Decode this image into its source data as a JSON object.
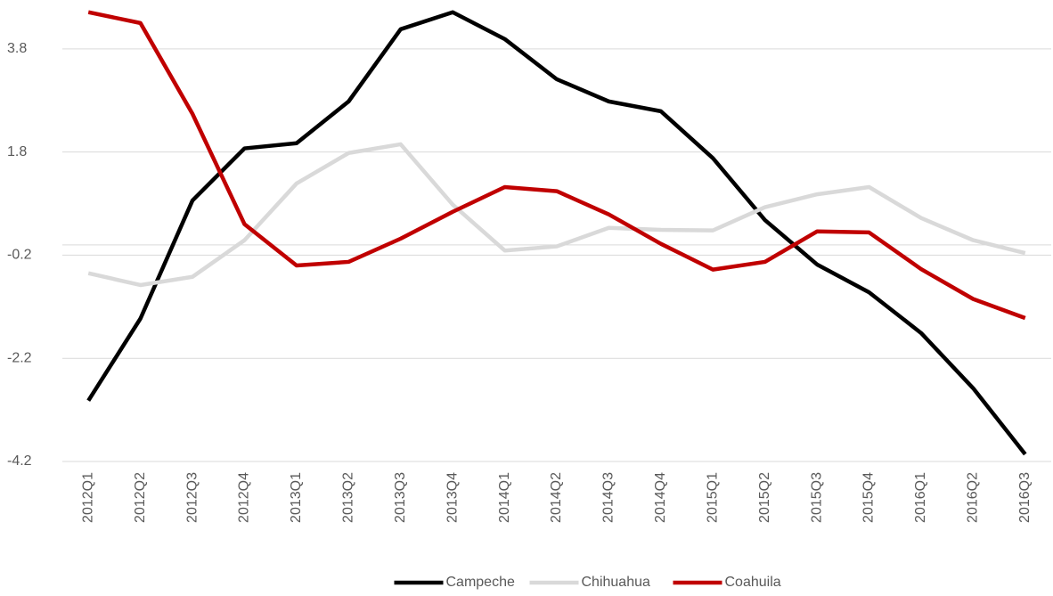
{
  "chart_data": {
    "type": "line",
    "categories": [
      "2012Q1",
      "2012Q2",
      "2012Q3",
      "2012Q4",
      "2013Q1",
      "2013Q2",
      "2013Q3",
      "2013Q4",
      "2014Q1",
      "2014Q2",
      "2014Q3",
      "2014Q4",
      "2015Q1",
      "2015Q2",
      "2015Q3",
      "2015Q4",
      "2016Q1",
      "2016Q2",
      "2016Q3"
    ],
    "series": [
      {
        "name": "Campeche",
        "color": "#000000",
        "values": [
          -3.02,
          -1.43,
          0.86,
          1.87,
          1.97,
          2.78,
          4.18,
          4.51,
          3.99,
          3.21,
          2.78,
          2.59,
          1.68,
          0.48,
          -0.38,
          -0.92,
          -1.71,
          -2.78,
          -4.06
        ]
      },
      {
        "name": "Chihuahua",
        "color": "#d9d9d9",
        "values": [
          -0.55,
          -0.78,
          -0.62,
          0.09,
          1.19,
          1.78,
          1.95,
          0.78,
          -0.11,
          -0.03,
          0.33,
          0.29,
          0.28,
          0.73,
          0.98,
          1.12,
          0.52,
          0.09,
          -0.16
        ]
      },
      {
        "name": "Coahuila",
        "color": "#c00000",
        "values": [
          4.51,
          4.3,
          2.54,
          0.4,
          -0.4,
          -0.33,
          0.12,
          0.64,
          1.12,
          1.04,
          0.59,
          0.02,
          -0.48,
          -0.33,
          0.26,
          0.24,
          -0.47,
          -1.05,
          -1.42
        ]
      }
    ],
    "ylim": [
      -4.2,
      4.6
    ],
    "yticks": [
      -4.2,
      -2.2,
      -0.2,
      1.8,
      3.8
    ],
    "grid": true,
    "legend": "bottom"
  }
}
